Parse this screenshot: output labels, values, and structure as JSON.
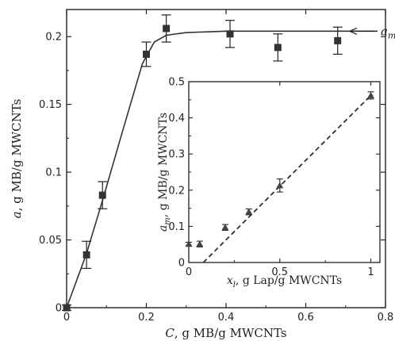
{
  "chart_data": [
    {
      "type": "scatter",
      "xlabel_var": "C",
      "xlabel_rest": ", g MB/g MWCNTs",
      "ylabel_var": "a",
      "ylabel_rest": ", g MB/g MWCNTs",
      "xlim": [
        0,
        0.8
      ],
      "ylim": [
        0,
        0.22
      ],
      "xticks": [
        0,
        0.2,
        0.4,
        0.6,
        0.8
      ],
      "xtick_labels": [
        "0",
        "0.2",
        "0.4",
        "0.6",
        "0.8"
      ],
      "yticks": [
        0,
        0.05,
        0.1,
        0.15,
        0.2
      ],
      "ytick_labels": [
        "0",
        "0.05",
        "0.1",
        "0.15",
        "0.2"
      ],
      "series": [
        {
          "marker": "square",
          "color": "#333333",
          "x": [
            0,
            0.05,
            0.09,
            0.2,
            0.25,
            0.41,
            0.53,
            0.68
          ],
          "y": [
            0.0,
            0.039,
            0.083,
            0.187,
            0.206,
            0.202,
            0.192,
            0.197
          ],
          "err": [
            0.002,
            0.01,
            0.01,
            0.009,
            0.01,
            0.01,
            0.01,
            0.01
          ]
        }
      ],
      "fit_curve": {
        "x": [
          0,
          0.05,
          0.09,
          0.14,
          0.19,
          0.22,
          0.25,
          0.3,
          0.4,
          0.5,
          0.6,
          0.7,
          0.78
        ],
        "y": [
          0,
          0.04,
          0.079,
          0.13,
          0.18,
          0.196,
          0.201,
          0.203,
          0.204,
          0.204,
          0.204,
          0.204,
          0.204
        ]
      },
      "annotation": {
        "var": "a",
        "sub": "m",
        "x": 0.78,
        "y": 0.204
      }
    },
    {
      "type": "scatter",
      "xlabel_var": "x",
      "xlabel_sub": "l",
      "xlabel_rest": ", g Lap/g MWCNTs",
      "ylabel_var": "a",
      "ylabel_sub": "m",
      "ylabel_rest": ", g MB/g MWCNTs",
      "xlim": [
        0,
        1.05
      ],
      "ylim": [
        0,
        0.5
      ],
      "xticks": [
        0,
        0.5,
        1
      ],
      "xtick_labels": [
        "0",
        "0.5",
        "1"
      ],
      "yticks": [
        0,
        0.1,
        0.2,
        0.3,
        0.4,
        0.5
      ],
      "ytick_labels": [
        "0",
        "0.1",
        "0.2",
        "0.3",
        "0.4",
        "0.5"
      ],
      "series": [
        {
          "marker": "triangle",
          "color": "#444444",
          "x": [
            0,
            0.06,
            0.2,
            0.33,
            0.5,
            1.0
          ],
          "y": [
            0.051,
            0.051,
            0.097,
            0.14,
            0.213,
            0.462
          ],
          "err": [
            0.005,
            0.008,
            0.008,
            0.008,
            0.018,
            0.01
          ]
        }
      ],
      "fit_line": {
        "x": [
          0.08,
          1.0
        ],
        "y": [
          0.0,
          0.462
        ],
        "style": "dashed"
      }
    }
  ]
}
